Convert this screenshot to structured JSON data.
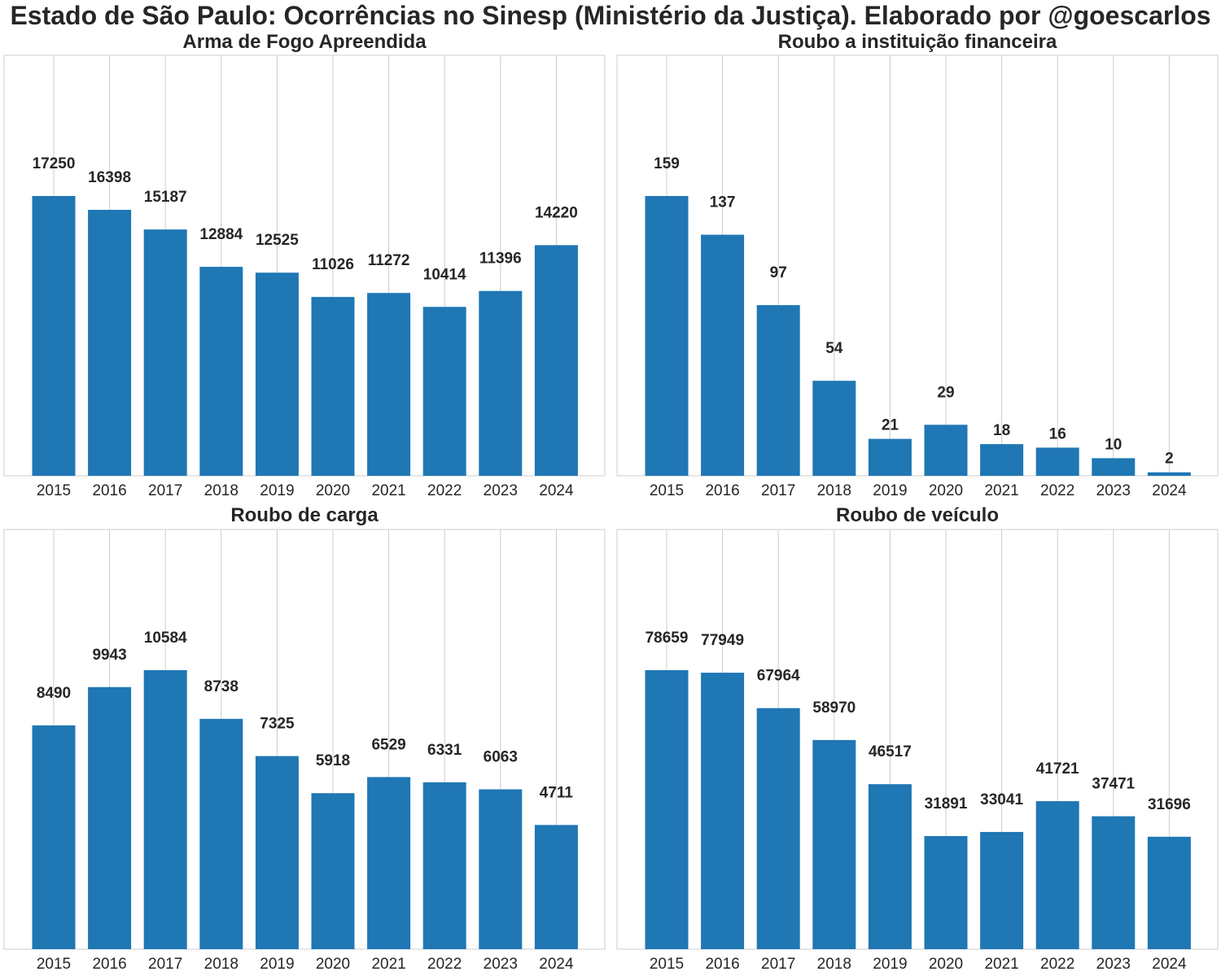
{
  "title": "Estado de São Paulo: Ocorrências no Sinesp (Ministério da Justiça). Elaborado por @goescarlos",
  "colors": {
    "bar": "#1f77b4",
    "grid": "#cccccc",
    "frame": "#cccccc",
    "text": "#262626"
  },
  "chart_data": [
    {
      "type": "bar",
      "title": "Arma de Fogo Apreendida",
      "categories": [
        "2015",
        "2016",
        "2017",
        "2018",
        "2019",
        "2020",
        "2021",
        "2022",
        "2023",
        "2024"
      ],
      "values": [
        17250,
        16398,
        15187,
        12884,
        12525,
        11026,
        11272,
        10414,
        11396,
        14220
      ],
      "ylim": [
        0,
        20000
      ],
      "grid": "x",
      "data_labels": true
    },
    {
      "type": "bar",
      "title": "Roubo a instituição financeira",
      "categories": [
        "2015",
        "2016",
        "2017",
        "2018",
        "2019",
        "2020",
        "2021",
        "2022",
        "2023",
        "2024"
      ],
      "values": [
        159,
        137,
        97,
        54,
        21,
        29,
        18,
        16,
        10,
        2
      ],
      "ylim": [
        0,
        160
      ],
      "grid": "x",
      "data_labels": true
    },
    {
      "type": "bar",
      "title": "Roubo de carga",
      "categories": [
        "2015",
        "2016",
        "2017",
        "2018",
        "2019",
        "2020",
        "2021",
        "2022",
        "2023",
        "2024"
      ],
      "values": [
        8490,
        9943,
        10584,
        8738,
        7325,
        5918,
        6529,
        6331,
        6063,
        4711
      ],
      "ylim": [
        0,
        10584
      ],
      "grid": "x",
      "data_labels": true
    },
    {
      "type": "bar",
      "title": "Roubo de veículo",
      "categories": [
        "2015",
        "2016",
        "2017",
        "2018",
        "2019",
        "2020",
        "2021",
        "2022",
        "2023",
        "2024"
      ],
      "values": [
        78659,
        77949,
        67964,
        58970,
        46517,
        31891,
        33041,
        41721,
        37471,
        31696
      ],
      "ylim": [
        0,
        78659
      ],
      "grid": "x",
      "data_labels": true
    }
  ]
}
